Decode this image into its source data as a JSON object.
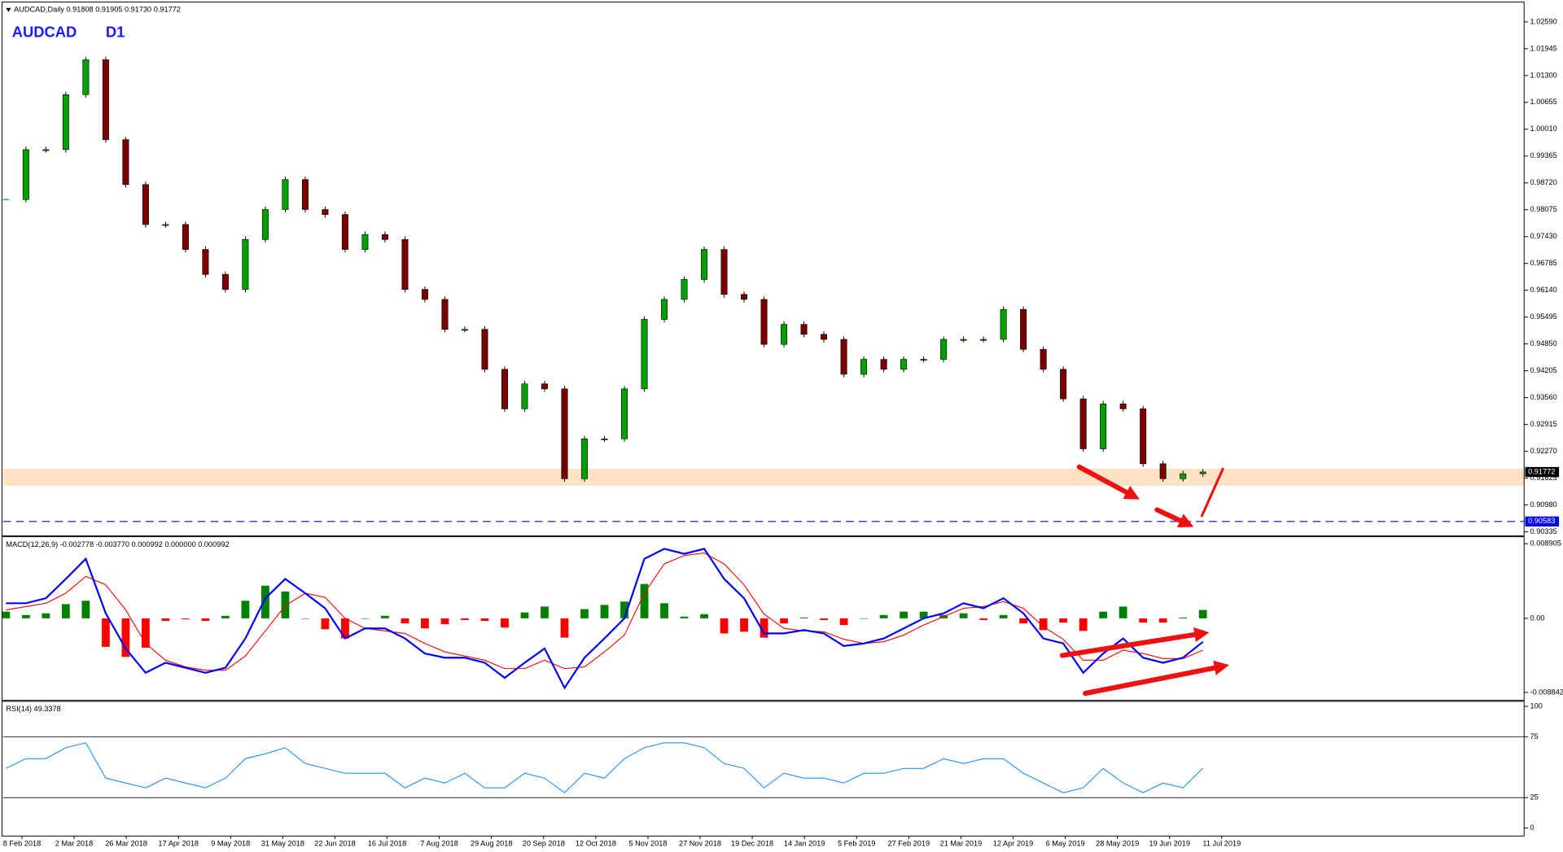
{
  "chart_data": [
    {
      "type": "candlestick",
      "symbol": "AUDCAD",
      "timeframe": "D1",
      "header": "AUDCAD,Daily  0.91808 0.91905 0.91730 0.91772",
      "values": [
        0.9832,
        0.9952,
        0.9952,
        1.0084,
        1.0168,
        0.9976,
        0.9868,
        0.9772,
        0.9772,
        0.9712,
        0.9652,
        0.9616,
        0.9736,
        0.9808,
        0.988,
        0.9808,
        0.9796,
        0.9712,
        0.9748,
        0.9736,
        0.9616,
        0.9592,
        0.952,
        0.952,
        0.9424,
        0.9329,
        0.9389,
        0.9377,
        0.9161,
        0.9257,
        0.9257,
        0.9377,
        0.9544,
        0.9592,
        0.964,
        0.9712,
        0.9604,
        0.9592,
        0.9484,
        0.9532,
        0.9508,
        0.9496,
        0.9412,
        0.9448,
        0.9424,
        0.9448,
        0.9448,
        0.9496,
        0.9496,
        0.9496,
        0.9568,
        0.9472,
        0.9424,
        0.9353,
        0.9233,
        0.9341,
        0.9329,
        0.9197,
        0.9161,
        0.9173,
        0.91772
      ],
      "up_color": "#00a000",
      "down_color": "#7a0000",
      "ylim": [
        0.9024,
        1.0302
      ],
      "yticks": [
        {
          "value": 1.0259,
          "label": "1.02590"
        },
        {
          "value": 1.01945,
          "label": "1.01945"
        },
        {
          "value": 1.013,
          "label": "1.01300"
        },
        {
          "value": 1.00655,
          "label": "1.00655"
        },
        {
          "value": 1.0001,
          "label": "1.00010"
        },
        {
          "value": 0.99365,
          "label": "0.99365"
        },
        {
          "value": 0.9872,
          "label": "0.98720"
        },
        {
          "value": 0.98075,
          "label": "0.98075"
        },
        {
          "value": 0.9743,
          "label": "0.97430"
        },
        {
          "value": 0.96785,
          "label": "0.96785"
        },
        {
          "value": 0.9614,
          "label": "0.96140"
        },
        {
          "value": 0.95495,
          "label": "0.95495"
        },
        {
          "value": 0.9485,
          "label": "0.94850"
        },
        {
          "value": 0.94205,
          "label": "0.94205"
        },
        {
          "value": 0.9356,
          "label": "0.93560"
        },
        {
          "value": 0.92915,
          "label": "0.92915"
        },
        {
          "value": 0.9227,
          "label": "0.92270"
        },
        {
          "value": 0.91625,
          "label": "0.91625"
        },
        {
          "value": 0.9098,
          "label": "0.90980"
        },
        {
          "value": 0.90335,
          "label": "0.90335"
        }
      ],
      "current_price": 0.91772,
      "support_level": 0.90583,
      "support_color": "#0000ff",
      "zone": [
        0.9144,
        0.9185
      ],
      "zone_color": "#fde2c4",
      "x_labels": [
        "8 Feb 2018",
        "2 Mar 2018",
        "26 Mar 2018",
        "17 Apr 2018",
        "9 May 2018",
        "31 May 2018",
        "22 Jun 2018",
        "16 Jul 2018",
        "7 Aug 2018",
        "29 Aug 2018",
        "20 Sep 2018",
        "12 Oct 2018",
        "5 Nov 2018",
        "27 Nov 2018",
        "19 Dec 2018",
        "14 Jan 2019",
        "5 Feb 2019",
        "27 Feb 2019",
        "21 Mar 2019",
        "12 Apr 2019",
        "6 May 2019",
        "28 May 2019",
        "19 Jun 2019",
        "11 Jul 2019"
      ]
    },
    {
      "type": "macd",
      "header": "MACD(12,26,9) -0.002778 -0.003770 0.000992 0.000000 0.000992",
      "series": [
        {
          "color": "#0000ff",
          "values": [
            0.0018,
            0.0018,
            0.0024,
            0.0047,
            0.0071,
            0.0006,
            -0.0036,
            -0.0065,
            -0.0053,
            -0.0059,
            -0.0065,
            -0.0059,
            -0.0024,
            0.0024,
            0.0047,
            0.003,
            0.0012,
            -0.0024,
            -0.0012,
            -0.0012,
            -0.0024,
            -0.0042,
            -0.0047,
            -0.0047,
            -0.0053,
            -0.0071,
            -0.0053,
            -0.0036,
            -0.0083,
            -0.0047,
            -0.0024,
            0.0,
            0.0071,
            0.0083,
            0.0077,
            0.0083,
            0.0047,
            0.0024,
            -0.0018,
            -0.0018,
            -0.0014,
            -0.0018,
            -0.0033,
            -0.003,
            -0.0024,
            -0.0012,
            0.0,
            0.0006,
            0.0018,
            0.0012,
            0.0024,
            0.0006,
            -0.0024,
            -0.003,
            -0.0065,
            -0.0042,
            -0.0024,
            -0.0047,
            -0.0053,
            -0.0047,
            -0.0028
          ]
        },
        {
          "color": "#ff0000",
          "values": [
            0.001,
            0.0014,
            0.0018,
            0.003,
            0.005,
            0.004,
            0.001,
            -0.003,
            -0.005,
            -0.0058,
            -0.0062,
            -0.0062,
            -0.0045,
            -0.0015,
            0.0015,
            0.003,
            0.0025,
            0.0,
            -0.0012,
            -0.0015,
            -0.0018,
            -0.003,
            -0.004,
            -0.0045,
            -0.005,
            -0.006,
            -0.006,
            -0.005,
            -0.006,
            -0.0058,
            -0.004,
            -0.002,
            0.003,
            0.0065,
            0.0075,
            0.0078,
            0.0065,
            0.004,
            0.0005,
            -0.0012,
            -0.0015,
            -0.0016,
            -0.0025,
            -0.003,
            -0.0028,
            -0.002,
            -0.0008,
            0.0002,
            0.0012,
            0.0014,
            0.002,
            0.0012,
            -0.001,
            -0.0025,
            -0.005,
            -0.005,
            -0.0038,
            -0.0042,
            -0.0048,
            -0.0048,
            -0.0038
          ]
        }
      ],
      "histogram": [
        0.0008,
        0.0004,
        0.0006,
        0.0017,
        0.0021,
        -0.0034,
        -0.0046,
        -0.0035,
        -0.0003,
        -0.0001,
        -0.0003,
        0.0003,
        0.0021,
        0.0039,
        0.0032,
        0.0,
        -0.0013,
        -0.0024,
        0.0,
        0.0003,
        -0.0006,
        -0.0012,
        -0.0007,
        -0.0002,
        -0.0003,
        -0.0011,
        0.0007,
        0.0014,
        -0.0023,
        0.0011,
        0.0016,
        0.002,
        0.0041,
        0.0018,
        0.0002,
        0.0005,
        -0.0018,
        -0.0016,
        -0.0023,
        -0.0006,
        0.0001,
        -0.0002,
        -0.0008,
        0.0,
        0.0004,
        0.0008,
        0.0008,
        0.0004,
        0.0006,
        -0.0002,
        0.0004,
        -0.0006,
        -0.0014,
        -0.0005,
        -0.0015,
        0.0008,
        0.0014,
        -0.0005,
        -0.0005,
        0.0001,
        0.001
      ],
      "up_color": "#008000",
      "down_color": "#ff0000",
      "ylim": [
        -0.00979,
        0.00974
      ],
      "yticks": [
        0.008905,
        {
          "value": 0,
          "label": "0.00"
        },
        -0.008842
      ]
    },
    {
      "type": "rsi",
      "header": "RSI(14) 49.3378",
      "color": "#1e90ff",
      "values": [
        49,
        57,
        57,
        66,
        70,
        41,
        37,
        33,
        41,
        37,
        33,
        41,
        57,
        61,
        66,
        53,
        49,
        45,
        45,
        45,
        33,
        41,
        37,
        45,
        33,
        33,
        45,
        41,
        29,
        45,
        41,
        57,
        66,
        70,
        70,
        66,
        53,
        49,
        33,
        45,
        41,
        41,
        37,
        45,
        45,
        49,
        49,
        57,
        53,
        57,
        57,
        45,
        37,
        29,
        33,
        49,
        37,
        29,
        37,
        33,
        49.3378
      ],
      "levels": [
        75,
        25
      ],
      "ylim": [
        -6.6,
        104.1
      ],
      "yticks": [
        100,
        75,
        25,
        0
      ]
    }
  ]
}
